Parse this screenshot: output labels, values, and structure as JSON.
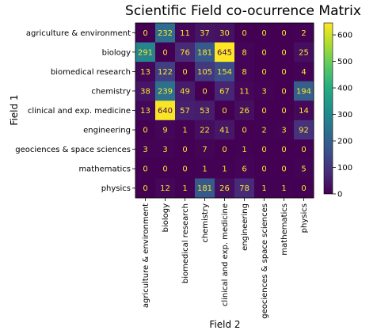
{
  "chart_data": {
    "type": "heatmap",
    "title": "Scientific Field co-ocurrence Matrix",
    "xlabel": "Field 2",
    "ylabel": "Field 1",
    "categories": [
      "agriculture & environment",
      "biology",
      "biomedical research",
      "chemistry",
      "clinical and exp. medicine",
      "engineering",
      "geociences & space sciences",
      "mathematics",
      "physics"
    ],
    "values": [
      [
        0,
        232,
        11,
        37,
        30,
        0,
        0,
        0,
        2
      ],
      [
        291,
        0,
        76,
        181,
        645,
        8,
        0,
        0,
        25
      ],
      [
        13,
        122,
        0,
        105,
        154,
        8,
        0,
        0,
        4
      ],
      [
        38,
        239,
        49,
        0,
        67,
        11,
        3,
        0,
        194
      ],
      [
        13,
        640,
        57,
        53,
        0,
        26,
        0,
        0,
        14
      ],
      [
        0,
        9,
        1,
        22,
        41,
        0,
        2,
        3,
        92
      ],
      [
        3,
        3,
        0,
        7,
        0,
        1,
        0,
        0,
        0
      ],
      [
        0,
        0,
        0,
        1,
        1,
        6,
        0,
        0,
        5
      ],
      [
        0,
        12,
        1,
        181,
        26,
        78,
        1,
        1,
        0
      ]
    ],
    "colorscale": "viridis",
    "vmin": 0,
    "vmax": 645,
    "colorbar_ticks": [
      0,
      100,
      200,
      300,
      400,
      500,
      600
    ]
  }
}
